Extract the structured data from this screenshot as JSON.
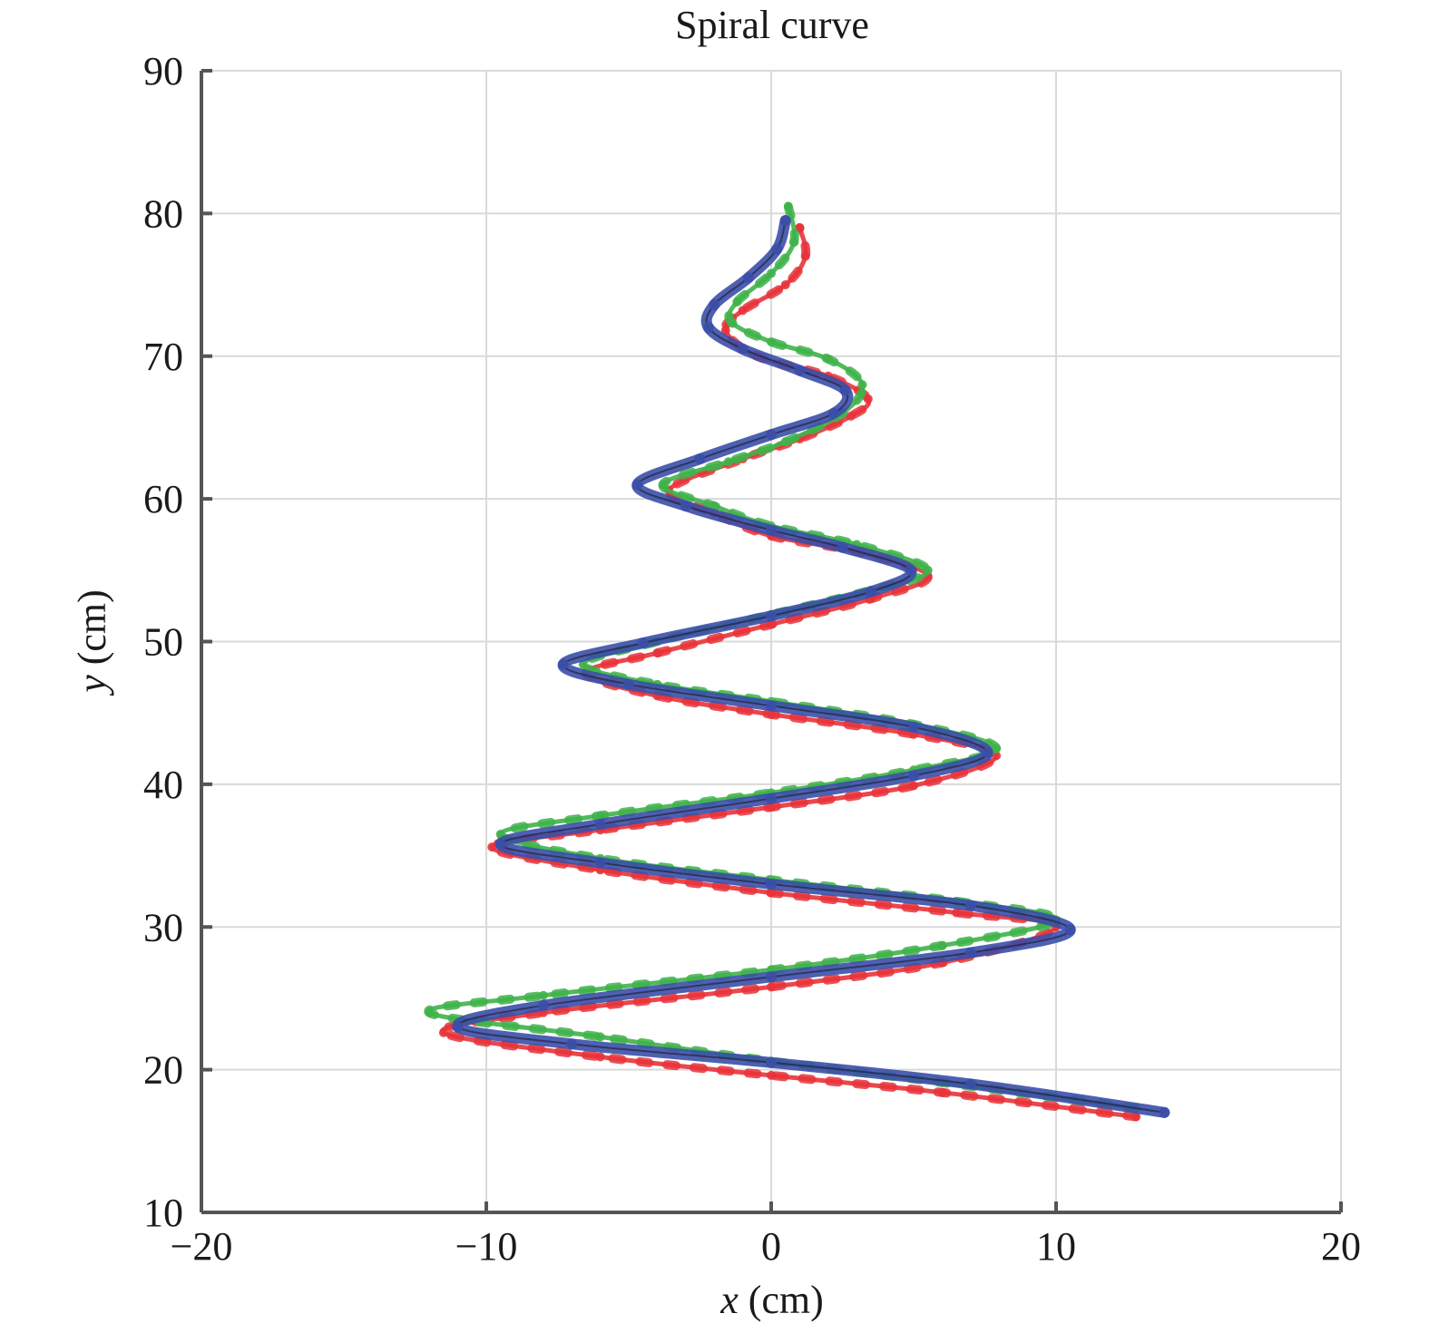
{
  "chart_data": {
    "type": "line",
    "title": "Spiral curve",
    "xlabel": {
      "var": "x",
      "unit": " (cm)"
    },
    "ylabel": {
      "var": "y",
      "unit": " (cm)"
    },
    "xlim": [
      -20,
      20
    ],
    "ylim": [
      10,
      90
    ],
    "xticks": [
      -20,
      -10,
      0,
      10,
      20
    ],
    "xtick_labels": [
      "−20",
      "−10",
      "0",
      "10",
      "20"
    ],
    "yticks": [
      10,
      20,
      30,
      40,
      50,
      60,
      70,
      80,
      90
    ],
    "ytick_labels": [
      "10",
      "20",
      "30",
      "40",
      "50",
      "60",
      "70",
      "80",
      "90"
    ],
    "grid": true,
    "legend": "none",
    "series": [
      {
        "color": "#3b4fa8",
        "marker": "line",
        "points": [
          [
            13.8,
            17.0
          ],
          [
            7.0,
            19.0
          ],
          [
            0.0,
            20.5
          ],
          [
            -7.0,
            21.8
          ],
          [
            -11.0,
            23.0
          ],
          [
            -8.0,
            24.5
          ],
          [
            0.0,
            26.5
          ],
          [
            7.0,
            28.2
          ],
          [
            10.5,
            29.8
          ],
          [
            7.0,
            31.5
          ],
          [
            0.0,
            33.0
          ],
          [
            -6.0,
            34.5
          ],
          [
            -9.5,
            35.8
          ],
          [
            -6.0,
            37.2
          ],
          [
            0.0,
            39.0
          ],
          [
            5.0,
            40.6
          ],
          [
            7.6,
            42.2
          ],
          [
            5.0,
            44.0
          ],
          [
            0.0,
            45.5
          ],
          [
            -5.0,
            47.0
          ],
          [
            -7.3,
            48.4
          ],
          [
            -4.5,
            49.9
          ],
          [
            0.0,
            51.8
          ],
          [
            3.5,
            53.5
          ],
          [
            4.9,
            55.0
          ],
          [
            2.5,
            56.6
          ],
          [
            0.0,
            57.8
          ],
          [
            -3.0,
            59.5
          ],
          [
            -4.7,
            61.0
          ],
          [
            -2.5,
            62.8
          ],
          [
            0.0,
            64.5
          ],
          [
            2.2,
            66.0
          ],
          [
            2.6,
            67.6
          ],
          [
            1.0,
            69.0
          ],
          [
            -1.0,
            70.5
          ],
          [
            -2.2,
            72.0
          ],
          [
            -2.0,
            73.6
          ],
          [
            -0.8,
            75.5
          ],
          [
            0.2,
            77.5
          ],
          [
            0.5,
            79.5
          ]
        ]
      },
      {
        "color": "#e8333a",
        "marker": "dot",
        "points": [
          [
            12.8,
            16.7
          ],
          [
            6.0,
            18.4
          ],
          [
            0.0,
            19.6
          ],
          [
            -6.0,
            20.9
          ],
          [
            -11.5,
            22.6
          ],
          [
            -8.0,
            24.0
          ],
          [
            0.0,
            25.8
          ],
          [
            6.0,
            27.5
          ],
          [
            10.0,
            30.0
          ],
          [
            6.5,
            31.0
          ],
          [
            0.0,
            32.4
          ],
          [
            -6.0,
            34.0
          ],
          [
            -9.8,
            35.6
          ],
          [
            -6.0,
            36.8
          ],
          [
            0.0,
            38.4
          ],
          [
            5.0,
            39.9
          ],
          [
            7.9,
            42.0
          ],
          [
            5.0,
            43.5
          ],
          [
            0.0,
            44.9
          ],
          [
            -4.0,
            46.2
          ],
          [
            -6.5,
            47.8
          ],
          [
            -4.0,
            49.2
          ],
          [
            0.0,
            51.2
          ],
          [
            3.5,
            53.0
          ],
          [
            5.5,
            54.6
          ],
          [
            3.0,
            56.3
          ],
          [
            0.0,
            57.4
          ],
          [
            -2.0,
            59.0
          ],
          [
            -3.6,
            60.6
          ],
          [
            -1.0,
            62.8
          ],
          [
            1.0,
            64.2
          ],
          [
            2.8,
            65.8
          ],
          [
            3.4,
            67.0
          ],
          [
            2.0,
            68.6
          ],
          [
            -0.5,
            70.0
          ],
          [
            -1.6,
            71.8
          ],
          [
            -1.0,
            73.2
          ],
          [
            0.5,
            75.0
          ],
          [
            1.2,
            77.0
          ],
          [
            1.0,
            79.0
          ]
        ]
      },
      {
        "color": "#3fb24a",
        "marker": "dot",
        "points": [
          [
            12.8,
            17.3
          ],
          [
            6.0,
            19.1
          ],
          [
            0.0,
            20.6
          ],
          [
            -6.0,
            22.3
          ],
          [
            -12.0,
            24.0
          ],
          [
            -8.0,
            25.2
          ],
          [
            0.0,
            27.0
          ],
          [
            6.0,
            28.7
          ],
          [
            10.0,
            30.5
          ],
          [
            6.5,
            31.8
          ],
          [
            0.0,
            33.3
          ],
          [
            -6.0,
            34.8
          ],
          [
            -9.5,
            36.5
          ],
          [
            -6.0,
            37.8
          ],
          [
            0.0,
            39.4
          ],
          [
            5.0,
            41.0
          ],
          [
            7.9,
            42.5
          ],
          [
            5.0,
            44.2
          ],
          [
            0.0,
            45.8
          ],
          [
            -4.0,
            47.0
          ],
          [
            -6.6,
            48.4
          ],
          [
            -4.0,
            50.0
          ],
          [
            0.0,
            51.9
          ],
          [
            3.5,
            53.6
          ],
          [
            5.5,
            55.0
          ],
          [
            3.0,
            56.8
          ],
          [
            0.0,
            58.1
          ],
          [
            -2.0,
            59.5
          ],
          [
            -3.8,
            61.0
          ],
          [
            -1.5,
            62.6
          ],
          [
            0.5,
            64.0
          ],
          [
            2.5,
            66.0
          ],
          [
            3.2,
            68.0
          ],
          [
            2.0,
            69.8
          ],
          [
            0.0,
            71.0
          ],
          [
            -1.4,
            72.4
          ],
          [
            -1.2,
            73.8
          ],
          [
            0.0,
            75.8
          ],
          [
            0.8,
            78.0
          ],
          [
            0.6,
            80.5
          ]
        ]
      }
    ]
  }
}
